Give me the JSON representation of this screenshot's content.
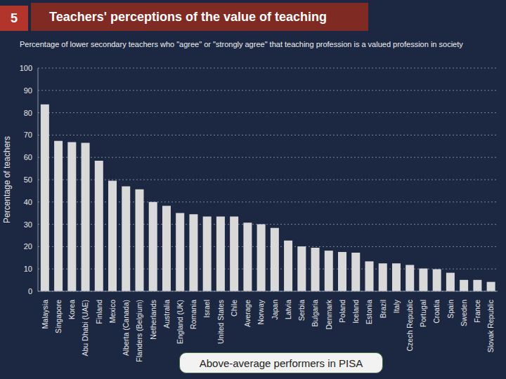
{
  "chart_data": {
    "type": "bar",
    "page_number": "5",
    "title": "Teachers' perceptions of the value of teaching",
    "subtitle": "Percentage of lower secondary teachers who \"agree\" or \"strongly agree\" that teaching profession is a valued profession in society",
    "y_label": "Percentage of teachers",
    "annotation": "Above-average performers in PISA",
    "categories": [
      "Malaysia",
      "Singapore",
      "Korea",
      "Abu Dhabi (UAE)",
      "Finland",
      "Mexico",
      "Alberta (Canada)",
      "Flanders (Belgium)",
      "Netherlands",
      "Australia",
      "England (UK)",
      "Romania",
      "Israel",
      "United States",
      "Chile",
      "Average",
      "Norway",
      "Japan",
      "Latvia",
      "Serbia",
      "Bulgaria",
      "Denmark",
      "Poland",
      "Iceland",
      "Estonia",
      "Brazil",
      "Italy",
      "Czech Republic",
      "Portugal",
      "Croatia",
      "Spain",
      "Sweden",
      "France",
      "Slovak Republic"
    ],
    "values": [
      83.7,
      67.4,
      66.8,
      66.5,
      58.5,
      49.5,
      47,
      45.7,
      40,
      38.3,
      35.1,
      34.5,
      33.5,
      33.5,
      33.5,
      30.7,
      30,
      28.4,
      22.7,
      20.1,
      19.5,
      18.2,
      17.6,
      17.3,
      13.4,
      12.5,
      12.5,
      11.8,
      10.2,
      9.9,
      8.3,
      5.1,
      5.1,
      4.2
    ],
    "color": "#d9d9d9",
    "ylim": [
      0,
      100
    ],
    "yticks": [
      0,
      10,
      20,
      30,
      40,
      50,
      60,
      70,
      80,
      90,
      100
    ],
    "grid": true
  }
}
